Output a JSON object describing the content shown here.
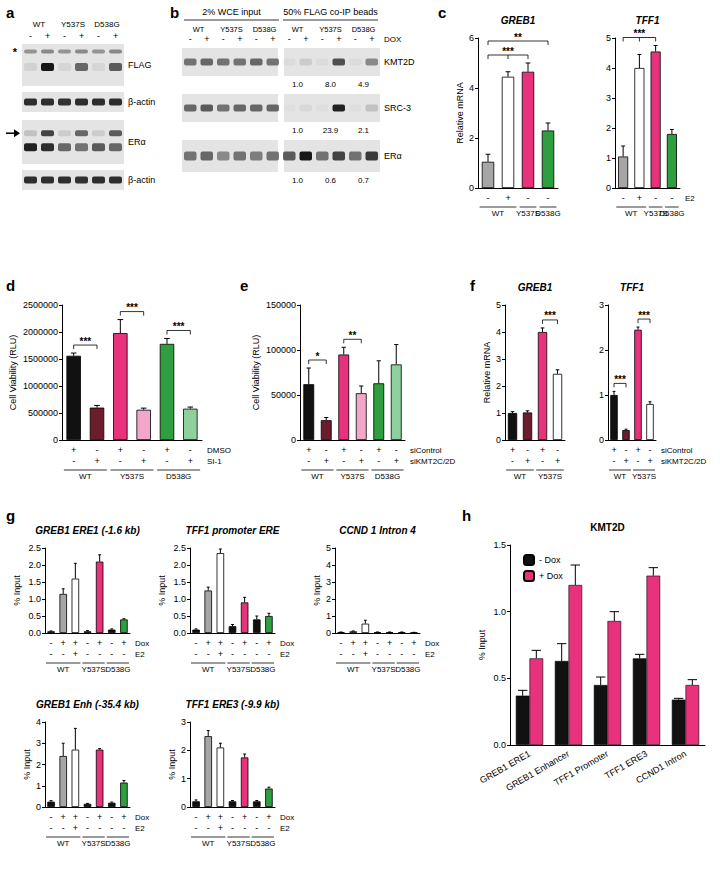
{
  "chart_data": [
    {
      "panel": "c",
      "type": "bar",
      "title": "GREB1",
      "y_label": "Relative mRNA",
      "categories": [
        null,
        null,
        null,
        null
      ],
      "values": [
        1.05,
        4.45,
        4.65,
        2.3
      ],
      "errors": [
        0.3,
        0.2,
        0.35,
        0.3
      ],
      "colors": [
        "#a6a6a6",
        "#ffffff",
        "#e8327c",
        "#2e9e3e"
      ],
      "ylim": [
        0,
        6
      ],
      "yticks": [
        0,
        2,
        4,
        6
      ],
      "conditions": [
        {
          "marks": [
            "-",
            "+",
            "-",
            "-"
          ]
        }
      ],
      "groups": [
        {
          "label": "WT",
          "from": 0,
          "to": 1
        },
        {
          "label": "Y537S",
          "from": 2,
          "to": 2
        },
        {
          "label": "D538G",
          "from": 3,
          "to": 3
        }
      ],
      "annotations": [
        {
          "text": "***",
          "from": 0,
          "to": [
            1,
            2
          ]
        },
        {
          "text": "**",
          "from": 0,
          "to": [
            3
          ]
        }
      ]
    },
    {
      "type": "bar",
      "title": "TFF1",
      "categories": [
        null,
        null,
        null,
        null
      ],
      "values": [
        1.05,
        4.0,
        4.55,
        1.8
      ],
      "errors": [
        0.35,
        0.45,
        0.2,
        0.15
      ],
      "colors": [
        "#a6a6a6",
        "#ffffff",
        "#e8327c",
        "#2e9e3e"
      ],
      "ylim": [
        0,
        5
      ],
      "yticks": [
        0,
        1,
        2,
        3,
        4,
        5
      ],
      "conditions": [
        {
          "label": "E2",
          "marks": [
            "-",
            "+",
            "-",
            "-"
          ]
        }
      ],
      "groups": [
        {
          "label": "WT",
          "from": 0,
          "to": 1
        },
        {
          "label": "Y537S",
          "from": 2,
          "to": 2
        },
        {
          "label": "D538G",
          "from": 3,
          "to": 3
        }
      ],
      "annotations": [
        {
          "text": "***",
          "from": 0,
          "to": [
            1,
            2
          ]
        }
      ]
    },
    {
      "panel": "d",
      "type": "bar",
      "y_label": "Cell Viability (RLU)",
      "categories": [
        null,
        null,
        null,
        null,
        null,
        null
      ],
      "values": [
        1560000,
        600000,
        1980000,
        560000,
        1780000,
        580000
      ],
      "errors": [
        50000,
        40000,
        250000,
        30000,
        100000,
        30000
      ],
      "colors": [
        "#111111",
        "#6b1d2e",
        "#e8327c",
        "#f2a6c8",
        "#2e9e3e",
        "#8fd19e"
      ],
      "ylim": [
        0,
        2500000
      ],
      "yticks": [
        0,
        500000,
        1000000,
        1500000,
        2000000,
        2500000
      ],
      "conditions": [
        {
          "label": "DMSO",
          "marks": [
            "+",
            "-",
            "+",
            "-",
            "+",
            "-"
          ]
        },
        {
          "label": "SI-1",
          "marks": [
            "-",
            "+",
            "-",
            "+",
            "-",
            "+"
          ]
        }
      ],
      "groups": [
        {
          "label": "WT",
          "from": 0,
          "to": 1
        },
        {
          "label": "Y537S",
          "from": 2,
          "to": 3
        },
        {
          "label": "D538G",
          "from": 4,
          "to": 5
        }
      ],
      "annotations": [
        {
          "text": "***",
          "from": 0,
          "to": [
            1
          ]
        },
        {
          "text": "***",
          "from": 2,
          "to": [
            3
          ]
        },
        {
          "text": "***",
          "from": 4,
          "to": [
            5
          ]
        }
      ]
    },
    {
      "panel": "e",
      "type": "bar",
      "y_label": "Cell Viability (RLU)",
      "categories": [
        null,
        null,
        null,
        null,
        null,
        null
      ],
      "values": [
        62000,
        22000,
        95000,
        52000,
        63000,
        84000
      ],
      "errors": [
        18000,
        3000,
        8000,
        8000,
        25000,
        22000
      ],
      "colors": [
        "#111111",
        "#6b1d2e",
        "#e8327c",
        "#f2a6c8",
        "#2e9e3e",
        "#8fd19e"
      ],
      "ylim": [
        0,
        150000
      ],
      "yticks": [
        0,
        50000,
        100000,
        150000
      ],
      "conditions": [
        {
          "label": "siControl",
          "marks": [
            "+",
            "-",
            "+",
            "-",
            "+",
            "-"
          ]
        },
        {
          "label": "siKMT2C/2D",
          "marks": [
            "-",
            "+",
            "-",
            "+",
            "-",
            "+"
          ]
        }
      ],
      "groups": [
        {
          "label": "WT",
          "from": 0,
          "to": 1
        },
        {
          "label": "Y537S",
          "from": 2,
          "to": 3
        },
        {
          "label": "D538G",
          "from": 4,
          "to": 5
        }
      ],
      "annotations": [
        {
          "text": "*",
          "from": 0,
          "to": [
            1
          ]
        },
        {
          "text": "**",
          "from": 2,
          "to": [
            3
          ]
        }
      ]
    },
    {
      "panel": "f",
      "type": "bar",
      "title": "GREB1",
      "y_label": "Relative mRNA",
      "categories": [
        null,
        null,
        null,
        null
      ],
      "values": [
        1.0,
        1.02,
        4.0,
        2.45
      ],
      "errors": [
        0.05,
        0.06,
        0.15,
        0.15
      ],
      "colors": [
        "#111111",
        "#6b1d2e",
        "#e8327c",
        "#ffffff"
      ],
      "ylim": [
        0,
        5
      ],
      "yticks": [
        0,
        1,
        2,
        3,
        4,
        5
      ],
      "conditions": [
        {
          "marks": [
            "+",
            "-",
            "+",
            "-"
          ]
        },
        {
          "marks": [
            "-",
            "+",
            "-",
            "+"
          ]
        }
      ],
      "groups": [
        {
          "label": "WT",
          "from": 0,
          "to": 1
        },
        {
          "label": "Y537S",
          "from": 2,
          "to": 3
        }
      ],
      "annotations": [
        {
          "text": "***",
          "from": 2,
          "to": [
            3
          ]
        }
      ]
    },
    {
      "type": "bar",
      "title": "TFF1",
      "categories": [
        null,
        null,
        null,
        null
      ],
      "values": [
        1.0,
        0.22,
        2.45,
        0.8
      ],
      "errors": [
        0.08,
        0.02,
        0.06,
        0.05
      ],
      "colors": [
        "#111111",
        "#6b1d2e",
        "#e8327c",
        "#ffffff"
      ],
      "ylim": [
        0,
        3
      ],
      "yticks": [
        0,
        1,
        2,
        3
      ],
      "conditions": [
        {
          "label": "siControl",
          "marks": [
            "+",
            "-",
            "+",
            "-"
          ]
        },
        {
          "label": "siKMT2C/2D",
          "marks": [
            "-",
            "+",
            "-",
            "+"
          ]
        }
      ],
      "groups": [
        {
          "label": "WT",
          "from": 0,
          "to": 1
        },
        {
          "label": "Y537S",
          "from": 2,
          "to": 3
        }
      ],
      "annotations": [
        {
          "text": "***",
          "from": 0,
          "to": [
            1
          ]
        },
        {
          "text": "***",
          "from": 2,
          "to": [
            3
          ]
        }
      ]
    },
    {
      "panel": "g",
      "type": "bar",
      "title": "GREB1 ERE1 (-1.6 kb)",
      "y_label": "% Input",
      "categories": [
        null,
        null,
        null,
        null,
        null,
        null,
        null
      ],
      "values": [
        0.05,
        1.15,
        1.6,
        0.05,
        2.1,
        0.1,
        0.4
      ],
      "errors": [
        0.01,
        0.15,
        0.45,
        0.02,
        0.2,
        0.02,
        0.02
      ],
      "colors": [
        "#111111",
        "#a6a6a6",
        "#ffffff",
        "#111111",
        "#e8327c",
        "#111111",
        "#2e9e3e"
      ],
      "ylim": [
        0,
        2.5
      ],
      "yticks": [
        {
          "value": 0,
          "label": "0.0"
        },
        {
          "value": 0.5,
          "label": "0.5"
        },
        {
          "value": 1,
          "label": "1.0"
        },
        {
          "value": 1.5,
          "label": "1.5"
        },
        {
          "value": 2,
          "label": "2.0"
        },
        {
          "value": 2.5,
          "label": "2.5"
        }
      ],
      "conditions": [
        {
          "label": "Dox",
          "marks": [
            "-",
            "+",
            "+",
            "-",
            "+",
            "-",
            "+"
          ]
        },
        {
          "label": "E2",
          "marks": [
            "-",
            "-",
            "+",
            "-",
            "-",
            "-",
            "-"
          ]
        }
      ],
      "groups": [
        {
          "label": "WT",
          "from": 0,
          "to": 2
        },
        {
          "label": "Y537S",
          "from": 3,
          "to": 4
        },
        {
          "label": "D538G",
          "from": 5,
          "to": 6
        }
      ]
    },
    {
      "type": "bar",
      "title": "TFF1 promoter ERE",
      "y_label": "% Input",
      "categories": [
        null,
        null,
        null,
        null,
        null,
        null,
        null
      ],
      "values": [
        0.1,
        1.25,
        2.35,
        0.2,
        0.9,
        0.4,
        0.5
      ],
      "errors": [
        0.02,
        0.1,
        0.12,
        0.05,
        0.15,
        0.1,
        0.08
      ],
      "colors": [
        "#111111",
        "#a6a6a6",
        "#ffffff",
        "#111111",
        "#e8327c",
        "#111111",
        "#2e9e3e"
      ],
      "ylim": [
        0,
        2.5
      ],
      "yticks": [
        {
          "value": 0,
          "label": "0.0"
        },
        {
          "value": 0.5,
          "label": "0.5"
        },
        {
          "value": 1,
          "label": "1.0"
        },
        {
          "value": 1.5,
          "label": "1.5"
        },
        {
          "value": 2,
          "label": "2.0"
        },
        {
          "value": 2.5,
          "label": "2.5"
        }
      ],
      "conditions": [
        {
          "label": "Dox",
          "marks": [
            "-",
            "+",
            "+",
            "-",
            "+",
            "-",
            "+"
          ]
        },
        {
          "label": "E2",
          "marks": [
            "-",
            "-",
            "+",
            "-",
            "-",
            "-",
            "-"
          ]
        }
      ],
      "groups": [
        {
          "label": "WT",
          "from": 0,
          "to": 2
        },
        {
          "label": "Y537S",
          "from": 3,
          "to": 4
        },
        {
          "label": "D538G",
          "from": 5,
          "to": 6
        }
      ]
    },
    {
      "type": "bar",
      "title": "CCND 1 Intron 4",
      "y_label": "% Input",
      "categories": [
        null,
        null,
        null,
        null,
        null,
        null,
        null
      ],
      "values": [
        0.05,
        0.1,
        0.55,
        0.05,
        0.05,
        0.05,
        0.03
      ],
      "errors": [
        0.01,
        0.02,
        0.2,
        0.01,
        0.01,
        0.01,
        0.01
      ],
      "colors": [
        "#111111",
        "#a6a6a6",
        "#ffffff",
        "#111111",
        "#e8327c",
        "#111111",
        "#2e9e3e"
      ],
      "ylim": [
        0,
        5
      ],
      "yticks": [
        0,
        1,
        2,
        3,
        4,
        5
      ],
      "conditions": [
        {
          "label": "Dox",
          "marks": [
            "-",
            "+",
            "+",
            "-",
            "+",
            "-",
            "+"
          ]
        },
        {
          "label": "E2",
          "marks": [
            "-",
            "-",
            "+",
            "-",
            "-",
            "-",
            "-"
          ]
        }
      ],
      "groups": [
        {
          "label": "WT",
          "from": 0,
          "to": 2
        },
        {
          "label": "Y537S",
          "from": 3,
          "to": 4
        },
        {
          "label": "D538G",
          "from": 5,
          "to": 6
        }
      ]
    },
    {
      "type": "bar",
      "title": "GREB1 Enh (-35.4 kb)",
      "y_label": "% Input",
      "categories": [
        null,
        null,
        null,
        null,
        null,
        null,
        null
      ],
      "values": [
        0.25,
        2.4,
        2.7,
        0.15,
        2.7,
        0.2,
        1.15
      ],
      "errors": [
        0.05,
        0.6,
        1.0,
        0.02,
        0.05,
        0.03,
        0.1
      ],
      "colors": [
        "#111111",
        "#a6a6a6",
        "#ffffff",
        "#111111",
        "#e8327c",
        "#111111",
        "#2e9e3e"
      ],
      "ylim": [
        0,
        4
      ],
      "yticks": [
        0,
        1,
        2,
        3,
        4
      ],
      "conditions": [
        {
          "label": "Dox",
          "marks": [
            "-",
            "+",
            "+",
            "-",
            "+",
            "-",
            "+"
          ]
        },
        {
          "label": "E2",
          "marks": [
            "-",
            "-",
            "+",
            "-",
            "-",
            "-",
            "-"
          ]
        }
      ],
      "groups": [
        {
          "label": "WT",
          "from": 0,
          "to": 2
        },
        {
          "label": "Y537S",
          "from": 3,
          "to": 4
        },
        {
          "label": "D538G",
          "from": 5,
          "to": 6
        }
      ]
    },
    {
      "type": "bar",
      "title": "TFF1 ERE3 (-9.9 kb)",
      "y_label": "% Input",
      "categories": [
        null,
        null,
        null,
        null,
        null,
        null,
        null
      ],
      "values": [
        0.2,
        2.5,
        2.1,
        0.2,
        1.75,
        0.2,
        0.65
      ],
      "errors": [
        0.05,
        0.2,
        0.15,
        0.03,
        0.12,
        0.03,
        0.05
      ],
      "colors": [
        "#111111",
        "#a6a6a6",
        "#ffffff",
        "#111111",
        "#e8327c",
        "#111111",
        "#2e9e3e"
      ],
      "ylim": [
        0,
        3
      ],
      "yticks": [
        0,
        1,
        2,
        3
      ],
      "conditions": [
        {
          "label": "Dox",
          "marks": [
            "-",
            "+",
            "+",
            "-",
            "+",
            "-",
            "+"
          ]
        },
        {
          "label": "E2",
          "marks": [
            "-",
            "-",
            "+",
            "-",
            "-",
            "-",
            "-"
          ]
        }
      ],
      "groups": [
        {
          "label": "WT",
          "from": 0,
          "to": 2
        },
        {
          "label": "Y537S",
          "from": 3,
          "to": 4
        },
        {
          "label": "D538G",
          "from": 5,
          "to": 6
        }
      ]
    },
    {
      "panel": "h",
      "type": "bar",
      "title": "KMT2D",
      "y_label": "% Input",
      "categories": [
        "GREB1 ERE1",
        "GREB1 Enhancer",
        "TFF1 Promoter",
        "TFF1 ERE3",
        "CCND1 Intron"
      ],
      "series": [
        {
          "name": "- Dox",
          "color": "#111111",
          "values": [
            0.37,
            0.63,
            0.45,
            0.65,
            0.34
          ],
          "errors": [
            0.04,
            0.13,
            0.06,
            0.03,
            0.01
          ]
        },
        {
          "name": "+ Dox",
          "color": "#e8327c",
          "values": [
            0.65,
            1.2,
            0.93,
            1.27,
            0.45
          ],
          "errors": [
            0.06,
            0.15,
            0.07,
            0.06,
            0.04
          ]
        }
      ],
      "ylim": [
        0,
        1.5
      ],
      "yticks": [
        {
          "value": 0,
          "label": "0.0"
        },
        {
          "value": 0.5,
          "label": "0.5"
        },
        {
          "value": 1,
          "label": "1.0"
        },
        {
          "value": 1.5,
          "label": "1.5"
        }
      ],
      "legend": "top-left"
    }
  ],
  "blots": [
    {
      "panel": "a",
      "groups": [
        "WT",
        "Y537S",
        "D538G"
      ],
      "marks": [
        "-",
        "+",
        "-",
        "+",
        "-",
        "+"
      ],
      "rows": [
        "FLAG",
        "β-actin",
        "ERα",
        "β-actin"
      ],
      "band_note": "*"
    },
    {
      "panel": "b",
      "sections": [
        "2% WCE input",
        "50% FLAG co-IP beads"
      ],
      "groups": [
        "WT",
        "Y537S",
        "D538G",
        "WT",
        "Y537S",
        "D538G"
      ],
      "marks_label": "DOX",
      "marks": [
        "-",
        "+",
        "-",
        "+",
        "-",
        "+",
        "-",
        "+",
        "-",
        "+",
        "-",
        "+"
      ],
      "rows": [
        {
          "label": "KMT2D",
          "quant": [
            "1.0",
            "8.0",
            "4.9"
          ]
        },
        {
          "label": "SRC-3",
          "quant": [
            "1.0",
            "23.9",
            "2.1"
          ]
        },
        {
          "label": "ERα",
          "quant": [
            "1.0",
            "0.6",
            "0.7"
          ]
        }
      ]
    }
  ]
}
